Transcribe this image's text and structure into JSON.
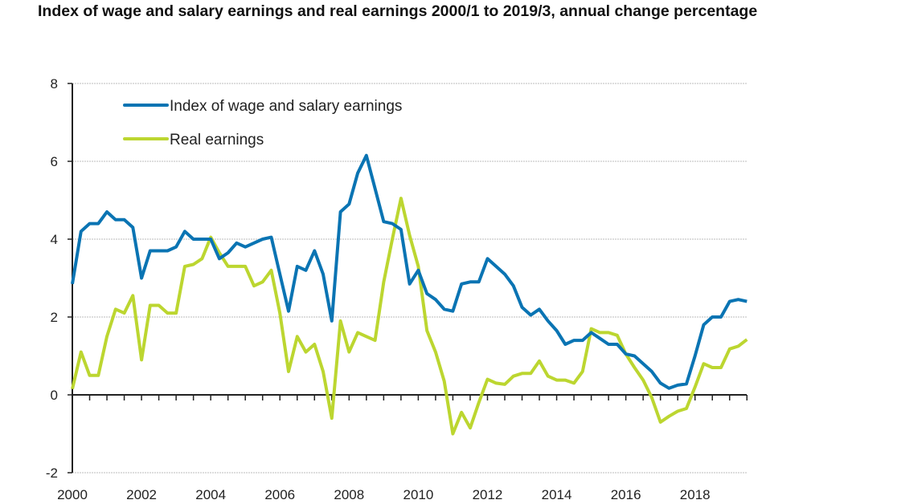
{
  "title": "Index of wage and salary earnings and real earnings 2000/1 to 2019/3, annual change percentage",
  "chart_data": {
    "type": "line",
    "title": "Index of wage and salary earnings and real earnings 2000/1 to 2019/3, annual change percentage",
    "xlabel": "",
    "ylabel": "",
    "x_start": "2000Q1",
    "x_end": "2019Q3",
    "x_frequency": "quarterly",
    "xlim": [
      2000,
      2019.5
    ],
    "ylim": [
      -2,
      8
    ],
    "xticks": [
      "2000",
      "2002",
      "2004",
      "2006",
      "2008",
      "2010",
      "2012",
      "2014",
      "2016",
      "2018"
    ],
    "yticks": [
      "-2",
      "0",
      "2",
      "4",
      "6",
      "8"
    ],
    "grid": true,
    "legend_position": "top-left",
    "series": [
      {
        "name": "Index of wage and salary earnings",
        "color": "#0a74b3",
        "values": [
          2.85,
          4.2,
          4.4,
          4.4,
          4.7,
          4.5,
          4.5,
          4.3,
          3.0,
          3.7,
          3.7,
          3.7,
          3.8,
          4.2,
          4.0,
          4.0,
          4.0,
          3.5,
          3.65,
          3.9,
          3.8,
          3.9,
          4.0,
          4.05,
          3.1,
          2.15,
          3.3,
          3.2,
          3.7,
          3.1,
          1.9,
          4.7,
          4.9,
          5.7,
          6.15,
          5.3,
          4.45,
          4.4,
          4.25,
          2.85,
          3.2,
          2.6,
          2.45,
          2.2,
          2.15,
          2.85,
          2.9,
          2.9,
          3.5,
          3.3,
          3.1,
          2.8,
          2.25,
          2.05,
          2.2,
          1.9,
          1.65,
          1.3,
          1.4,
          1.4,
          1.6,
          1.45,
          1.3,
          1.3,
          1.05,
          1.0,
          0.8,
          0.6,
          0.3,
          0.17,
          0.25,
          0.28,
          1.0,
          1.8,
          2.0,
          2.0,
          2.4,
          2.45,
          2.4
        ]
      },
      {
        "name": "Real earnings",
        "color": "#bcd630",
        "values": [
          0.15,
          1.1,
          0.5,
          0.5,
          1.5,
          2.2,
          2.1,
          2.55,
          0.9,
          2.3,
          2.3,
          2.1,
          2.1,
          3.3,
          3.35,
          3.5,
          4.05,
          3.65,
          3.3,
          3.3,
          3.3,
          2.8,
          2.9,
          3.2,
          2.1,
          0.6,
          1.5,
          1.1,
          1.3,
          0.6,
          -0.6,
          1.9,
          1.1,
          1.6,
          1.5,
          1.4,
          2.9,
          4.0,
          5.05,
          4.1,
          3.3,
          1.65,
          1.1,
          0.35,
          -1.0,
          -0.45,
          -0.85,
          -0.2,
          0.4,
          0.3,
          0.27,
          0.48,
          0.55,
          0.55,
          0.87,
          0.48,
          0.38,
          0.38,
          0.3,
          0.6,
          1.7,
          1.6,
          1.6,
          1.53,
          1.05,
          0.7,
          0.38,
          -0.07,
          -0.7,
          -0.55,
          -0.42,
          -0.35,
          0.2,
          0.8,
          0.7,
          0.7,
          1.18,
          1.25,
          1.42
        ]
      }
    ]
  }
}
